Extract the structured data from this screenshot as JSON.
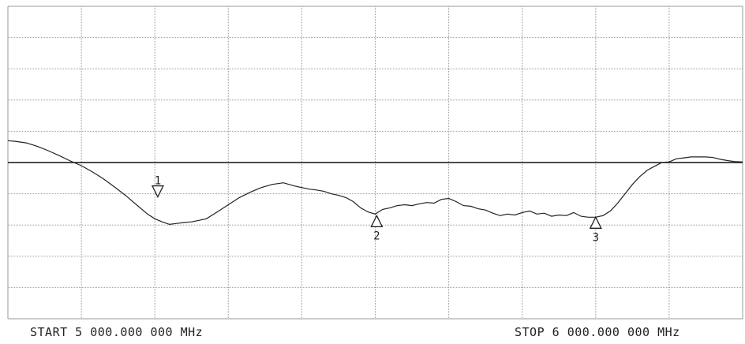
{
  "chart_data": {
    "type": "line",
    "title": "",
    "xlabel": "",
    "ylabel": "",
    "x_unit": "MHz",
    "xlim": [
      5000,
      6000
    ],
    "ylim": [
      0,
      10
    ],
    "grid": true,
    "legend": "none",
    "start_label": "START 5 000.000 000 MHz",
    "stop_label": "STOP 6 000.000 000 MHz",
    "reference_level": 5.0,
    "series": [
      {
        "x": [
          5000,
          5010,
          5025,
          5040,
          5055,
          5070,
          5085,
          5100,
          5115,
          5130,
          5145,
          5160,
          5175,
          5190,
          5200,
          5210,
          5220,
          5230,
          5240,
          5250,
          5260,
          5270,
          5285,
          5300,
          5315,
          5330,
          5345,
          5360,
          5375,
          5390,
          5400,
          5410,
          5420,
          5430,
          5440,
          5450,
          5460,
          5470,
          5480,
          5490,
          5500,
          5510,
          5520,
          5530,
          5540,
          5550,
          5560,
          5570,
          5580,
          5590,
          5600,
          5610,
          5620,
          5630,
          5640,
          5650,
          5660,
          5670,
          5680,
          5690,
          5700,
          5710,
          5720,
          5730,
          5740,
          5750,
          5760,
          5770,
          5780,
          5790,
          5800,
          5810,
          5820,
          5830,
          5840,
          5850,
          5860,
          5870,
          5880,
          5890,
          5900,
          5910,
          5920,
          5930,
          5940,
          5950,
          5960,
          5970,
          5980,
          5990,
          6000
        ],
        "y": [
          5.7,
          5.68,
          5.63,
          5.52,
          5.38,
          5.22,
          5.05,
          4.9,
          4.7,
          4.48,
          4.22,
          3.95,
          3.65,
          3.35,
          3.2,
          3.1,
          3.02,
          3.05,
          3.08,
          3.1,
          3.15,
          3.2,
          3.42,
          3.65,
          3.88,
          4.05,
          4.2,
          4.3,
          4.35,
          4.25,
          4.2,
          4.15,
          4.12,
          4.08,
          4.0,
          3.95,
          3.88,
          3.75,
          3.55,
          3.42,
          3.35,
          3.5,
          3.55,
          3.62,
          3.65,
          3.62,
          3.68,
          3.72,
          3.7,
          3.82,
          3.85,
          3.75,
          3.62,
          3.6,
          3.52,
          3.48,
          3.38,
          3.3,
          3.35,
          3.32,
          3.4,
          3.45,
          3.35,
          3.38,
          3.28,
          3.32,
          3.3,
          3.4,
          3.28,
          3.25,
          3.25,
          3.3,
          3.45,
          3.7,
          4.0,
          4.3,
          4.55,
          4.75,
          4.88,
          5.0,
          5.02,
          5.12,
          5.15,
          5.18,
          5.18,
          5.18,
          5.16,
          5.1,
          5.06,
          5.03,
          5.02
        ]
      }
    ],
    "markers": [
      {
        "label": "1",
        "x": 5204,
        "y": 3.9,
        "direction": "down"
      },
      {
        "label": "2",
        "x": 5502,
        "y": 3.3,
        "direction": "up"
      },
      {
        "label": "3",
        "x": 5800,
        "y": 3.25,
        "direction": "up"
      }
    ]
  }
}
